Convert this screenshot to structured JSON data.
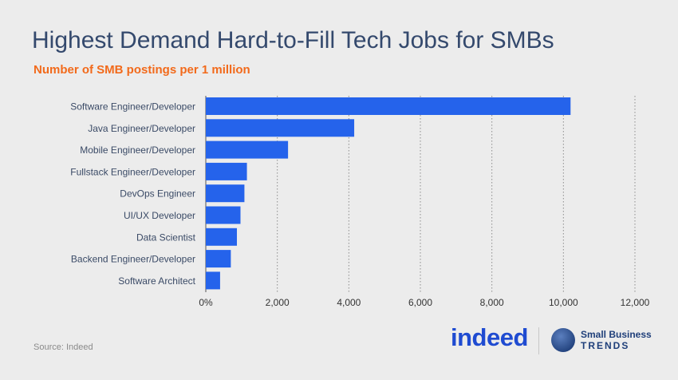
{
  "header": {
    "title": "Highest Demand Hard-to-Fill Tech Jobs for SMBs",
    "subtitle": "Number of SMB postings per 1 million"
  },
  "footer": {
    "source": "Source: Indeed",
    "indeed_logo": "indeed",
    "sbt_line1": "Small Business",
    "sbt_line2": "TRENDS"
  },
  "colors": {
    "bar": "#2563eb",
    "title": "#34496d",
    "subtitle": "#f26a1b",
    "background": "#ececec"
  },
  "chart_data": {
    "type": "bar",
    "orientation": "horizontal",
    "title": "Highest Demand Hard-to-Fill Tech Jobs for SMBs",
    "subtitle": "Number of SMB postings per 1 million",
    "xlabel": "",
    "ylabel": "",
    "categories": [
      "Software Engineer/Developer",
      "Java Engineer/Developer",
      "Mobile Engineer/Developer",
      "Fullstack Engineer/Developer",
      "DevOps Engineer",
      "UI/UX Developer",
      "Data Scientist",
      "Backend Engineer/Developer",
      "Software Architect"
    ],
    "values": [
      10200,
      4150,
      2300,
      1150,
      1080,
      970,
      870,
      700,
      400
    ],
    "xlim": [
      0,
      12000
    ],
    "ticks": [
      0,
      2000,
      4000,
      6000,
      8000,
      10000,
      12000
    ],
    "tick_labels": [
      "0%",
      "2,000",
      "4,000",
      "6,000",
      "8,000",
      "10,000",
      "12,000"
    ],
    "grid": "vertical dotted"
  }
}
